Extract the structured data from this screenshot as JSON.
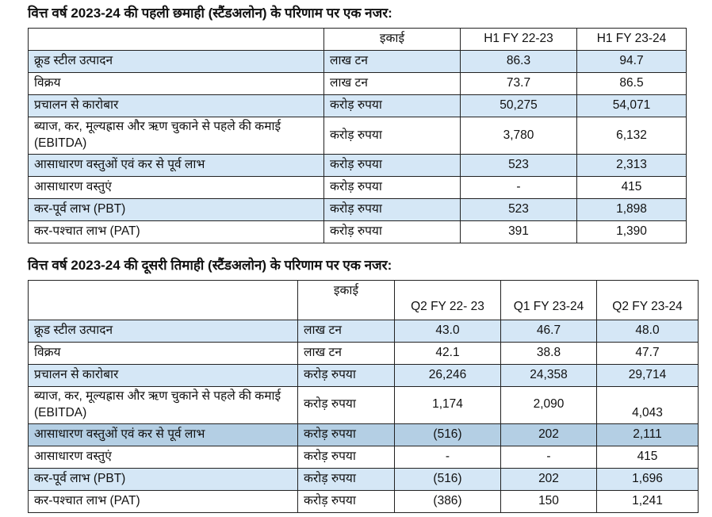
{
  "colors": {
    "row_shade_light": "#d5e7f6",
    "row_shade_dark": "#b4cfe4",
    "border": "#222222",
    "text": "#111111",
    "background": "#ffffff"
  },
  "sections": [
    {
      "title": "वित्त वर्ष 2023-24 की पहली छमाही (स्टैंडअलोन) के परिणाम पर एक नजर:",
      "table": {
        "columns": [
          "",
          "इकाई",
          "H1 FY 22-23",
          "H1 FY 23-24"
        ],
        "rows": [
          {
            "label": "क्रूड स्टील उत्पादन",
            "unit": "लाख टन",
            "values": [
              "86.3",
              "94.7"
            ],
            "shade": "light"
          },
          {
            "label": "विक्रय",
            "unit": "लाख टन",
            "values": [
              "73.7",
              "86.5"
            ],
            "shade": "white"
          },
          {
            "label": "प्रचालन से कारोबार",
            "unit": "करोड़ रुपया",
            "values": [
              "50,275",
              "54,071"
            ],
            "shade": "light"
          },
          {
            "label": "ब्याज, कर, मूल्यह्रास और ऋण चुकाने से पहले की कमाई (EBITDA)",
            "unit": "करोड़ रुपया",
            "values": [
              "3,780",
              "6,132"
            ],
            "shade": "white"
          },
          {
            "label": "आसाधारण वस्तुओं एवं कर से पूर्व लाभ",
            "unit": "करोड़ रुपया",
            "values": [
              "523",
              "2,313"
            ],
            "shade": "light"
          },
          {
            "label": "आसाधारण वस्तुएं",
            "unit": "करोड़ रुपया",
            "values": [
              "-",
              "415"
            ],
            "shade": "white"
          },
          {
            "label": "कर-पूर्व लाभ (PBT)",
            "unit": "करोड़ रुपया",
            "values": [
              "523",
              "1,898"
            ],
            "shade": "light"
          },
          {
            "label": "कर-पश्चात लाभ (PAT)",
            "unit": "करोड़ रुपया",
            "values": [
              "391",
              "1,390"
            ],
            "shade": "white"
          }
        ]
      }
    },
    {
      "title": "वित्त वर्ष 2023-24 की दूसरी तिमाही (स्टैंडअलोन) के परिणाम पर एक नजर:",
      "table": {
        "columns": [
          "",
          "इकाई",
          "Q2 FY 22- 23",
          "Q1 FY 23-24",
          "Q2 FY 23-24"
        ],
        "rows": [
          {
            "label": "क्रूड स्टील उत्पादन",
            "unit": "लाख टन",
            "values": [
              "43.0",
              "46.7",
              "48.0"
            ],
            "shade": "light"
          },
          {
            "label": "विक्रय",
            "unit": "लाख टन",
            "values": [
              "42.1",
              "38.8",
              "47.7"
            ],
            "shade": "white"
          },
          {
            "label": "प्रचालन से कारोबार",
            "unit": "करोड़ रुपया",
            "values": [
              "26,246",
              "24,358",
              "29,714"
            ],
            "shade": "light"
          },
          {
            "label": "ब्याज, कर, मूल्यह्रास और ऋण चुकाने से पहले की कमाई (EBITDA)",
            "unit": "करोड़ रुपया",
            "values": [
              "1,174",
              "2,090",
              "4,043"
            ],
            "shade": "white"
          },
          {
            "label": "आसाधारण वस्तुओं एवं कर से पूर्व लाभ",
            "unit": "करोड़ रुपया",
            "values": [
              "(516)",
              "202",
              "2,111"
            ],
            "shade": "dark"
          },
          {
            "label": "आसाधारण वस्तुएं",
            "unit": "करोड़ रुपया",
            "values": [
              "-",
              "-",
              "415"
            ],
            "shade": "white"
          },
          {
            "label": "कर-पूर्व लाभ (PBT)",
            "unit": "करोड़ रुपया",
            "values": [
              "(516)",
              "202",
              "1,696"
            ],
            "shade": "light"
          },
          {
            "label": "कर-पश्चात लाभ (PAT)",
            "unit": "करोड़ रुपया",
            "values": [
              "(386)",
              "150",
              "1,241"
            ],
            "shade": "white"
          }
        ]
      }
    }
  ]
}
